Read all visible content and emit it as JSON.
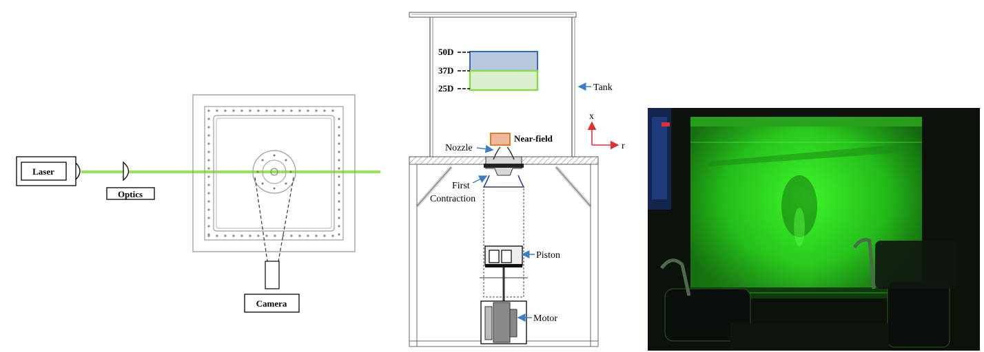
{
  "top_view": {
    "laser_label": "Laser",
    "optics_label": "Optics",
    "camera_label": "Camera",
    "laser_sheet_color": "#97e35a"
  },
  "side_view": {
    "levels": [
      "50D",
      "37D",
      "25D"
    ],
    "tank_label": "Tank",
    "nearfield_label": "Near-field",
    "nozzle_label": "Nozzle",
    "first_contraction_label": [
      "First",
      "Contraction"
    ],
    "piston_label": "Piston",
    "motor_label": "Motor",
    "axis_x_label": "x",
    "axis_r_label": "r",
    "field_50D_color": "#2e6ab5",
    "field_25D_color": "#86d84b",
    "nearfield_color": "#e07a2e",
    "arrow_color": "#3b7ec4",
    "axis_color": "#e03030"
  },
  "photo": {
    "background": "#0a120a",
    "glow_color": "#3cff28"
  }
}
